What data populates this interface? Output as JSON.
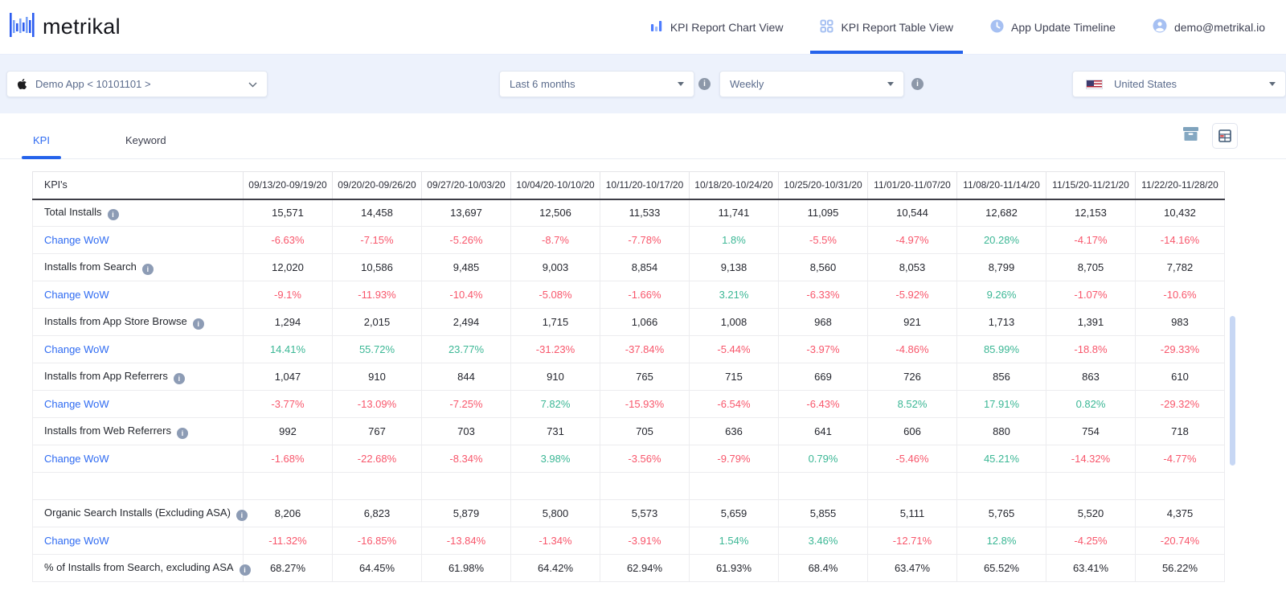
{
  "topbar": {
    "logo_text": "metrikal",
    "nav": [
      {
        "label": "KPI Report Chart View",
        "icon": "bar-chart-icon",
        "active": false
      },
      {
        "label": "KPI Report Table View",
        "icon": "grid-icon",
        "active": true
      },
      {
        "label": "App Update Timeline",
        "icon": "clock-icon",
        "active": false
      },
      {
        "label": "demo@metrikal.io",
        "icon": "user-icon",
        "active": false
      }
    ]
  },
  "filters": {
    "app_selector": "Demo App < 10101101 >",
    "date_range": "Last 6 months",
    "granularity": "Weekly",
    "country": "United States"
  },
  "tabs": [
    {
      "label": "KPI",
      "active": true
    },
    {
      "label": "Keyword",
      "active": false
    }
  ],
  "table": {
    "kpi_header": "KPI's",
    "columns": [
      "09/13/20-09/19/20",
      "09/20/20-09/26/20",
      "09/27/20-10/03/20",
      "10/04/20-10/10/20",
      "10/11/20-10/17/20",
      "10/18/20-10/24/20",
      "10/25/20-10/31/20",
      "11/01/20-11/07/20",
      "11/08/20-11/14/20",
      "11/15/20-11/21/20",
      "11/22/20-11/28/20"
    ],
    "rows": [
      {
        "label": "Total Installs",
        "type": "value",
        "info": true,
        "values": [
          "15,571",
          "14,458",
          "13,697",
          "12,506",
          "11,533",
          "11,741",
          "11,095",
          "10,544",
          "12,682",
          "12,153",
          "10,432"
        ]
      },
      {
        "label": "Change WoW",
        "type": "change",
        "values": [
          "-6.63%",
          "-7.15%",
          "-5.26%",
          "-8.7%",
          "-7.78%",
          "1.8%",
          "-5.5%",
          "-4.97%",
          "20.28%",
          "-4.17%",
          "-14.16%"
        ]
      },
      {
        "label": "Installs from Search",
        "type": "value",
        "info": true,
        "values": [
          "12,020",
          "10,586",
          "9,485",
          "9,003",
          "8,854",
          "9,138",
          "8,560",
          "8,053",
          "8,799",
          "8,705",
          "7,782"
        ]
      },
      {
        "label": "Change WoW",
        "type": "change",
        "values": [
          "-9.1%",
          "-11.93%",
          "-10.4%",
          "-5.08%",
          "-1.66%",
          "3.21%",
          "-6.33%",
          "-5.92%",
          "9.26%",
          "-1.07%",
          "-10.6%"
        ]
      },
      {
        "label": "Installs from App Store Browse",
        "type": "value",
        "info": true,
        "values": [
          "1,294",
          "2,015",
          "2,494",
          "1,715",
          "1,066",
          "1,008",
          "968",
          "921",
          "1,713",
          "1,391",
          "983"
        ]
      },
      {
        "label": "Change WoW",
        "type": "change",
        "values": [
          "14.41%",
          "55.72%",
          "23.77%",
          "-31.23%",
          "-37.84%",
          "-5.44%",
          "-3.97%",
          "-4.86%",
          "85.99%",
          "-18.8%",
          "-29.33%"
        ]
      },
      {
        "label": "Installs from App Referrers",
        "type": "value",
        "info": true,
        "values": [
          "1,047",
          "910",
          "844",
          "910",
          "765",
          "715",
          "669",
          "726",
          "856",
          "863",
          "610"
        ]
      },
      {
        "label": "Change WoW",
        "type": "change",
        "values": [
          "-3.77%",
          "-13.09%",
          "-7.25%",
          "7.82%",
          "-15.93%",
          "-6.54%",
          "-6.43%",
          "8.52%",
          "17.91%",
          "0.82%",
          "-29.32%"
        ]
      },
      {
        "label": "Installs from Web Referrers",
        "type": "value",
        "info": true,
        "values": [
          "992",
          "767",
          "703",
          "731",
          "705",
          "636",
          "641",
          "606",
          "880",
          "754",
          "718"
        ]
      },
      {
        "label": "Change WoW",
        "type": "change",
        "values": [
          "-1.68%",
          "-22.68%",
          "-8.34%",
          "3.98%",
          "-3.56%",
          "-9.79%",
          "0.79%",
          "-5.46%",
          "45.21%",
          "-14.32%",
          "-4.77%"
        ]
      },
      {
        "type": "spacer"
      },
      {
        "label": "Organic Search Installs (Excluding ASA)",
        "type": "value",
        "info": true,
        "values": [
          "8,206",
          "6,823",
          "5,879",
          "5,800",
          "5,573",
          "5,659",
          "5,855",
          "5,111",
          "5,765",
          "5,520",
          "4,375"
        ]
      },
      {
        "label": "Change WoW",
        "type": "change",
        "values": [
          "-11.32%",
          "-16.85%",
          "-13.84%",
          "-1.34%",
          "-3.91%",
          "1.54%",
          "3.46%",
          "-12.71%",
          "12.8%",
          "-4.25%",
          "-20.74%"
        ]
      },
      {
        "label": "% of Installs from Search, excluding ASA",
        "type": "value",
        "info": true,
        "values": [
          "68.27%",
          "64.45%",
          "61.98%",
          "64.42%",
          "62.94%",
          "61.93%",
          "68.4%",
          "63.47%",
          "65.52%",
          "63.41%",
          "56.22%"
        ]
      }
    ]
  },
  "colors": {
    "accent": "#2563eb",
    "link": "#2f6bf2",
    "positive": "#3bb795",
    "negative": "#f8566b",
    "nav_icon": "#a6c0f2",
    "filter_bg": "#edf2fc"
  }
}
